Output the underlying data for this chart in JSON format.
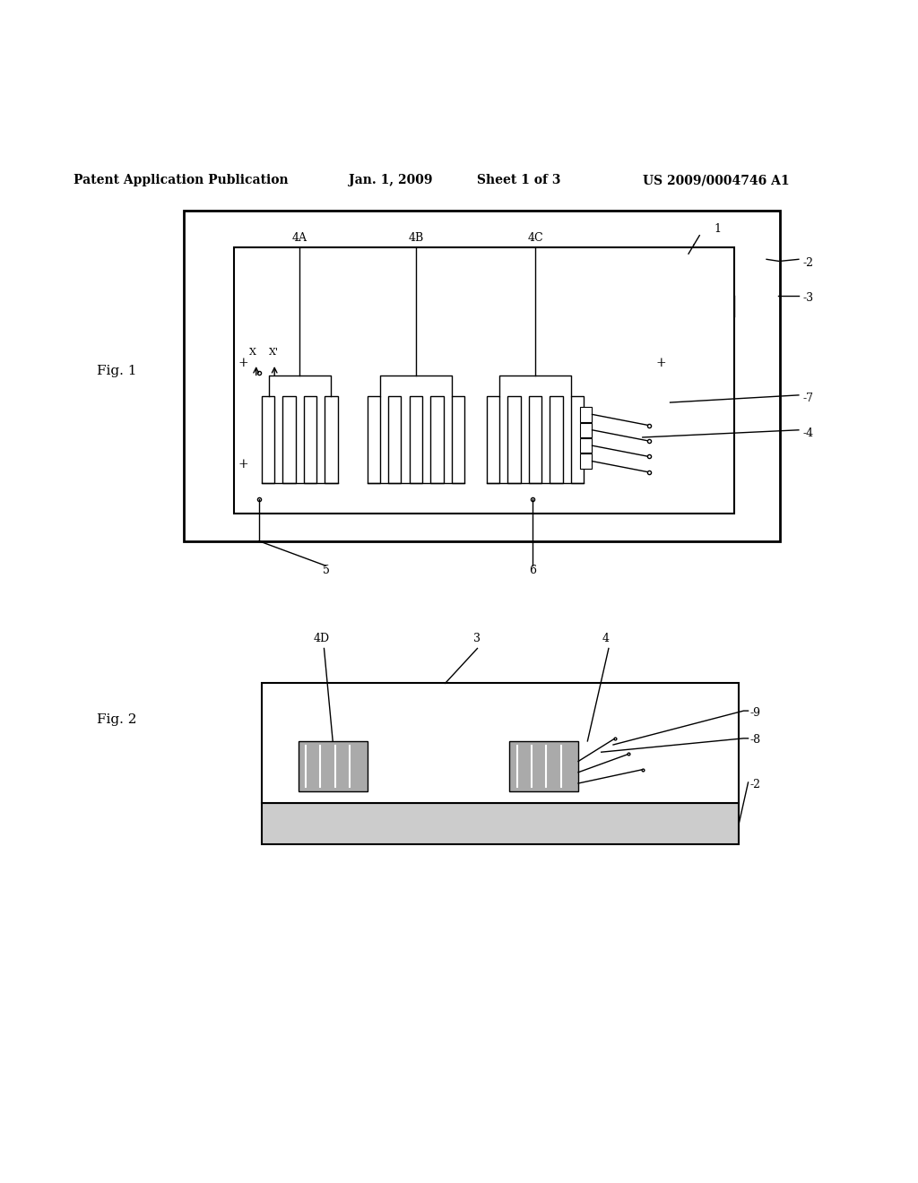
{
  "bg_color": "#ffffff",
  "line_color": "#000000",
  "header_text": "Patent Application Publication",
  "header_date": "Jan. 1, 2009",
  "header_sheet": "Sheet 1 of 3",
  "header_patent": "US 2009/0004746 A1",
  "fig1_label": "Fig. 1",
  "fig2_label": "Fig. 2"
}
